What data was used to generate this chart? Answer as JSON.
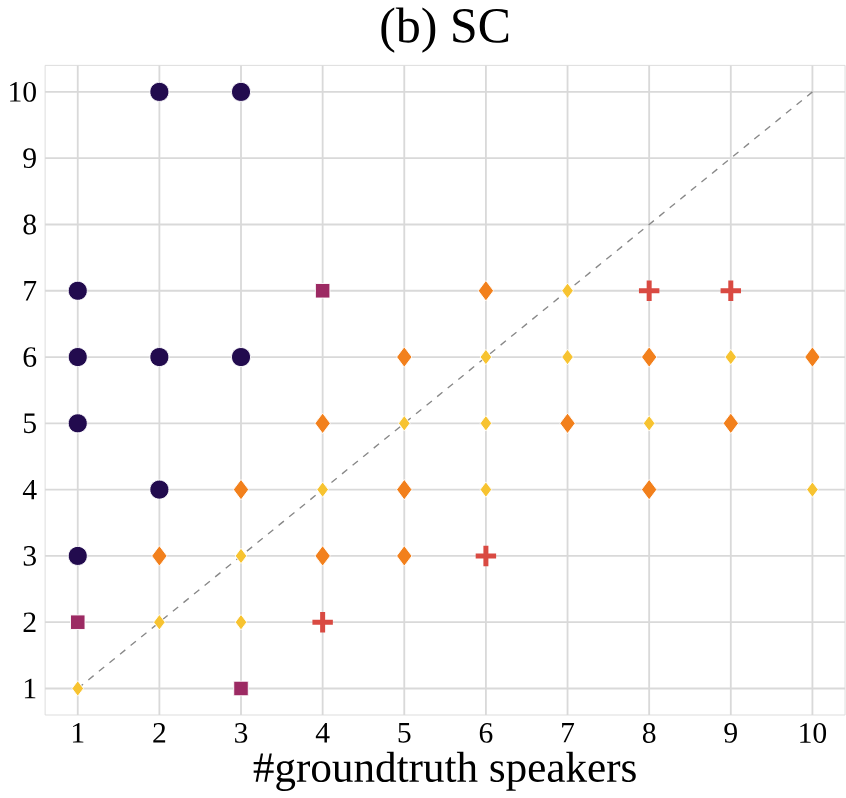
{
  "chart_data": {
    "type": "scatter",
    "title": "(b) SC",
    "xlabel": "#groundtruth speakers",
    "xlim": [
      0.6,
      10.4
    ],
    "ylim": [
      0.6,
      10.4
    ],
    "xticks": [
      1,
      2,
      3,
      4,
      5,
      6,
      7,
      8,
      9,
      10
    ],
    "yticks": [
      1,
      2,
      3,
      4,
      5,
      6,
      7,
      8,
      9,
      10
    ],
    "grid": true,
    "series": [
      {
        "type": "line",
        "color": "#888888",
        "line_style": "dashed",
        "marker": "none",
        "x": [
          1,
          10
        ],
        "values": [
          1,
          10
        ]
      },
      {
        "color": "#220b4e",
        "marker": "circle",
        "x": [
          1,
          1,
          1,
          1,
          2,
          2,
          2,
          3,
          3
        ],
        "values": [
          7,
          6,
          5,
          3,
          10,
          6,
          4,
          10,
          6
        ]
      },
      {
        "color": "#9c2a63",
        "marker": "square",
        "x": [
          1,
          3,
          4
        ],
        "values": [
          2,
          1,
          7
        ]
      },
      {
        "color": "#d94a42",
        "marker": "cross",
        "x": [
          4,
          6,
          8,
          9
        ],
        "values": [
          2,
          3,
          7,
          7
        ]
      },
      {
        "color": "#f2801c",
        "marker": "diamond",
        "x": [
          2,
          3,
          4,
          4,
          5,
          5,
          5,
          6,
          7,
          8,
          8,
          9,
          10
        ],
        "values": [
          3,
          4,
          5,
          3,
          6,
          4,
          3,
          7,
          5,
          6,
          4,
          5,
          6
        ]
      },
      {
        "color": "#f7c330",
        "marker": "diamond",
        "x": [
          1,
          2,
          3,
          3,
          4,
          5,
          6,
          6,
          6,
          7,
          7,
          8,
          9,
          10
        ],
        "values": [
          1,
          2,
          3,
          2,
          4,
          5,
          6,
          5,
          4,
          7,
          6,
          5,
          6,
          4
        ]
      }
    ]
  }
}
